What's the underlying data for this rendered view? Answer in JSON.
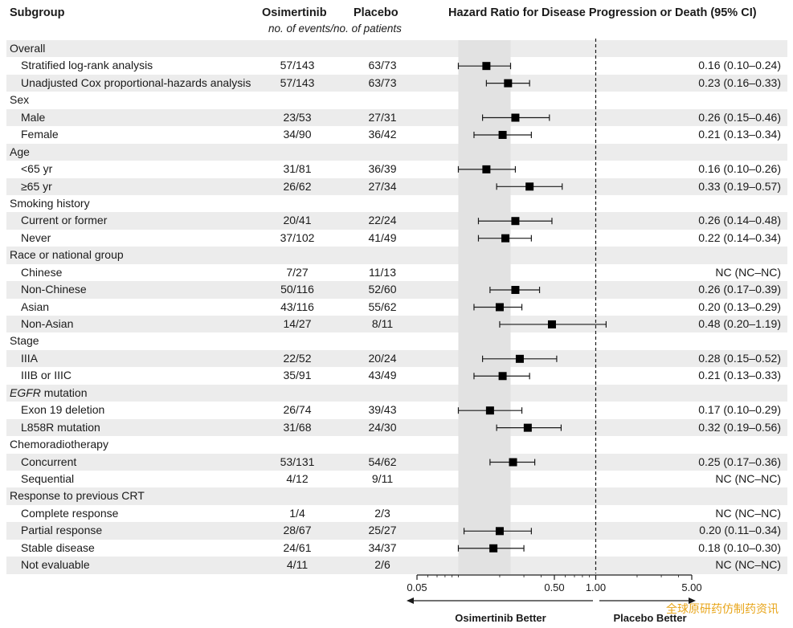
{
  "headers": {
    "subgroup": "Subgroup",
    "osimertinib": "Osimertinib",
    "placebo": "Placebo",
    "events_note": "no. of events/no. of patients",
    "hr": "Hazard Ratio for Disease Progression or Death (95% CI)"
  },
  "chart_data": {
    "type": "forest",
    "x_scale": "log",
    "x_ticks": [
      "0.05",
      "0.50",
      "1.00",
      "5.00"
    ],
    "x_tick_values": [
      0.05,
      0.5,
      1.0,
      5.0
    ],
    "xlim": [
      0.05,
      5.0
    ],
    "reference_value": 1.0,
    "shaded_band": [
      0.1,
      0.24
    ],
    "left_label": "Osimertinib Better",
    "right_label": "Placebo Better",
    "rows": [
      {
        "label": "Overall",
        "group": true
      },
      {
        "label": "Stratified log-rank analysis",
        "osi": "57/143",
        "pla": "63/73",
        "hr_text": "0.16 (0.10–0.24)",
        "hr": 0.16,
        "lo": 0.1,
        "hi": 0.24
      },
      {
        "label": "Unadjusted Cox proportional-hazards analysis",
        "osi": "57/143",
        "pla": "63/73",
        "hr_text": "0.23 (0.16–0.33)",
        "hr": 0.23,
        "lo": 0.16,
        "hi": 0.33
      },
      {
        "label": "Sex",
        "group": true
      },
      {
        "label": "Male",
        "osi": "23/53",
        "pla": "27/31",
        "hr_text": "0.26 (0.15–0.46)",
        "hr": 0.26,
        "lo": 0.15,
        "hi": 0.46
      },
      {
        "label": "Female",
        "osi": "34/90",
        "pla": "36/42",
        "hr_text": "0.21 (0.13–0.34)",
        "hr": 0.21,
        "lo": 0.13,
        "hi": 0.34
      },
      {
        "label": "Age",
        "group": true
      },
      {
        "label": "<65 yr",
        "osi": "31/81",
        "pla": "36/39",
        "hr_text": "0.16 (0.10–0.26)",
        "hr": 0.16,
        "lo": 0.1,
        "hi": 0.26
      },
      {
        "label": "≥65 yr",
        "osi": "26/62",
        "pla": "27/34",
        "hr_text": "0.33 (0.19–0.57)",
        "hr": 0.33,
        "lo": 0.19,
        "hi": 0.57
      },
      {
        "label": "Smoking history",
        "group": true
      },
      {
        "label": "Current or former",
        "osi": "20/41",
        "pla": "22/24",
        "hr_text": "0.26 (0.14–0.48)",
        "hr": 0.26,
        "lo": 0.14,
        "hi": 0.48
      },
      {
        "label": "Never",
        "osi": "37/102",
        "pla": "41/49",
        "hr_text": "0.22 (0.14–0.34)",
        "hr": 0.22,
        "lo": 0.14,
        "hi": 0.34
      },
      {
        "label": "Race or national group",
        "group": true
      },
      {
        "label": "Chinese",
        "osi": "7/27",
        "pla": "11/13",
        "hr_text": "NC (NC–NC)"
      },
      {
        "label": "Non-Chinese",
        "osi": "50/116",
        "pla": "52/60",
        "hr_text": "0.26 (0.17–0.39)",
        "hr": 0.26,
        "lo": 0.17,
        "hi": 0.39
      },
      {
        "label": "Asian",
        "osi": "43/116",
        "pla": "55/62",
        "hr_text": "0.20 (0.13–0.29)",
        "hr": 0.2,
        "lo": 0.13,
        "hi": 0.29
      },
      {
        "label": "Non-Asian",
        "osi": "14/27",
        "pla": "8/11",
        "hr_text": "0.48 (0.20–1.19)",
        "hr": 0.48,
        "lo": 0.2,
        "hi": 1.19
      },
      {
        "label": "Stage",
        "group": true
      },
      {
        "label": "IIIA",
        "osi": "22/52",
        "pla": "20/24",
        "hr_text": "0.28 (0.15–0.52)",
        "hr": 0.28,
        "lo": 0.15,
        "hi": 0.52
      },
      {
        "label": "IIIB or IIIC",
        "osi": "35/91",
        "pla": "43/49",
        "hr_text": "0.21 (0.13–0.33)",
        "hr": 0.21,
        "lo": 0.13,
        "hi": 0.33
      },
      {
        "label": "EGFR mutation",
        "group": true,
        "italic_prefix": "EGFR",
        "suffix": " mutation"
      },
      {
        "label": "Exon 19 deletion",
        "osi": "26/74",
        "pla": "39/43",
        "hr_text": "0.17 (0.10–0.29)",
        "hr": 0.17,
        "lo": 0.1,
        "hi": 0.29
      },
      {
        "label": "L858R mutation",
        "osi": "31/68",
        "pla": "24/30",
        "hr_text": "0.32 (0.19–0.56)",
        "hr": 0.32,
        "lo": 0.19,
        "hi": 0.56
      },
      {
        "label": "Chemoradiotherapy",
        "group": true
      },
      {
        "label": "Concurrent",
        "osi": "53/131",
        "pla": "54/62",
        "hr_text": "0.25 (0.17–0.36)",
        "hr": 0.25,
        "lo": 0.17,
        "hi": 0.36
      },
      {
        "label": "Sequential",
        "osi": "4/12",
        "pla": "9/11",
        "hr_text": "NC (NC–NC)"
      },
      {
        "label": "Response to previous CRT",
        "group": true
      },
      {
        "label": "Complete response",
        "osi": "1/4",
        "pla": "2/3",
        "hr_text": "NC (NC–NC)"
      },
      {
        "label": "Partial response",
        "osi": "28/67",
        "pla": "25/27",
        "hr_text": "0.20 (0.11–0.34)",
        "hr": 0.2,
        "lo": 0.11,
        "hi": 0.34
      },
      {
        "label": "Stable disease",
        "osi": "24/61",
        "pla": "34/37",
        "hr_text": "0.18 (0.10–0.30)",
        "hr": 0.18,
        "lo": 0.1,
        "hi": 0.3
      },
      {
        "label": "Not evaluable",
        "osi": "4/11",
        "pla": "2/6",
        "hr_text": "NC (NC–NC)"
      }
    ]
  },
  "watermark": "全球原研药仿制药资讯"
}
